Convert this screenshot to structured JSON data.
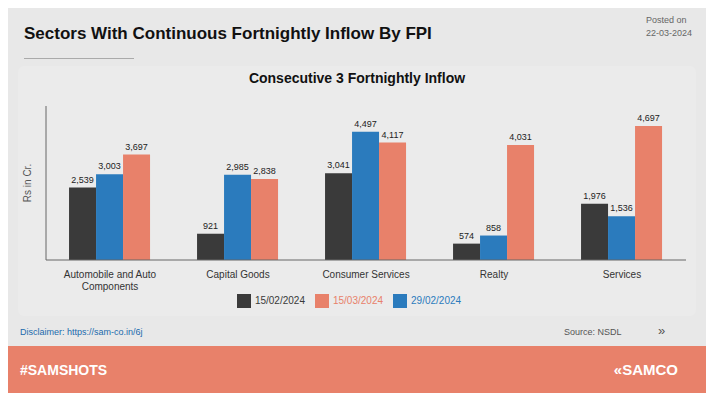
{
  "chart_data": {
    "type": "bar",
    "title": "Sectors With Continuous Fortnightly Inflow By FPI",
    "subtitle": "Consecutive 3 Fortnightly Inflow",
    "y_label": "Rs in Cr.",
    "categories": [
      "Automobile and Auto\nComponents",
      "Capital Goods",
      "Consumer Services",
      "Realty",
      "Services"
    ],
    "series": [
      {
        "name": "15/02/2024",
        "color": "#3a3a3a",
        "values": [
          2539,
          921,
          3041,
          574,
          1976
        ],
        "value_labels": [
          "2,539",
          "921",
          "3,041",
          "574",
          "1,976"
        ]
      },
      {
        "name": "29/02/2024",
        "color": "#2b7bbd",
        "values": [
          3003,
          2985,
          4497,
          858,
          1536
        ],
        "value_labels": [
          "3,003",
          "2,985",
          "4,497",
          "858",
          "1,536"
        ]
      },
      {
        "name": "15/03/2024",
        "color": "#e8816a",
        "values": [
          3697,
          2838,
          4117,
          4031,
          4697
        ],
        "value_labels": [
          "3,697",
          "2,838",
          "4,117",
          "4,031",
          "4,697"
        ]
      }
    ],
    "ylim": [
      0,
      5400
    ],
    "data_labels": true,
    "tick_labels": "x",
    "grid": false,
    "legend": "bottom",
    "annotations": [
      "Posted on\n22-03-2024",
      "Disclaimer: https://sam-co.in/6j",
      "Source: NSDL",
      "»",
      "#SAMSHOTS",
      "«SAMCO"
    ]
  }
}
